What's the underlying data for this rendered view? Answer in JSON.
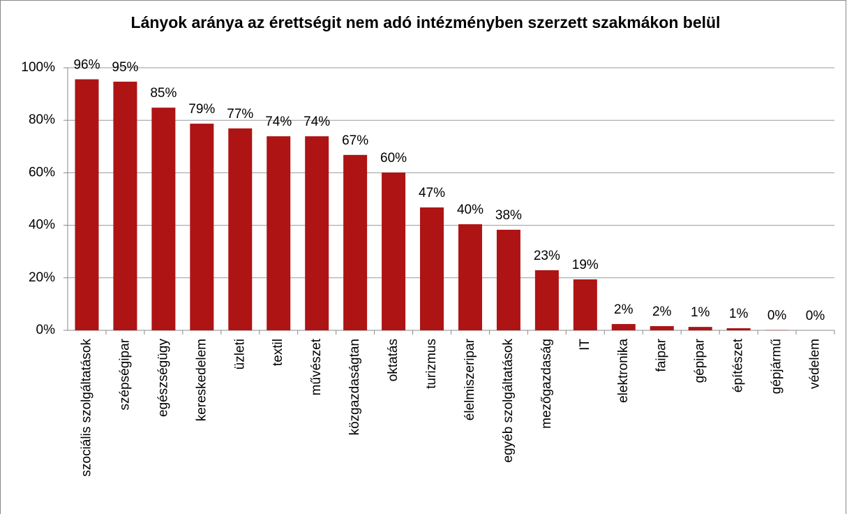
{
  "chart_data": {
    "type": "bar",
    "title": "Lányok aránya az érettségit nem adó intézményben szerzett szakmákon belül",
    "categories": [
      "szociális szolgáltatások",
      "szépségipar",
      "egészségügy",
      "kereskedelem",
      "üzleti",
      "textil",
      "művészet",
      "közgazdaságtan",
      "oktatás",
      "turizmus",
      "élelmiszeripar",
      "egyéb szolgáltatások",
      "mezőgazdaság",
      "IT",
      "elektronika",
      "faipar",
      "gépipar",
      "építészet",
      "gépjármű",
      "védelem"
    ],
    "values": [
      95.6,
      94.7,
      84.8,
      78.7,
      76.9,
      73.9,
      73.9,
      66.8,
      60.1,
      46.8,
      40.4,
      38.3,
      22.9,
      19.4,
      2.4,
      1.6,
      1.3,
      0.8,
      0.1,
      0
    ],
    "value_labels": [
      "96%",
      "95%",
      "85%",
      "79%",
      "77%",
      "74%",
      "74%",
      "67%",
      "60%",
      "47%",
      "40%",
      "38%",
      "23%",
      "19%",
      "2%",
      "2%",
      "1%",
      "1%",
      "0%",
      "0%"
    ],
    "color": "#ae1414",
    "ylim": [
      0,
      100
    ],
    "yticks": [
      {
        "value": 0,
        "label": "0%"
      },
      {
        "value": 20,
        "label": "20%"
      },
      {
        "value": 40,
        "label": "40%"
      },
      {
        "value": 60,
        "label": "60%"
      },
      {
        "value": 80,
        "label": "80%"
      },
      {
        "value": 100,
        "label": "100%"
      }
    ],
    "grid": true
  }
}
